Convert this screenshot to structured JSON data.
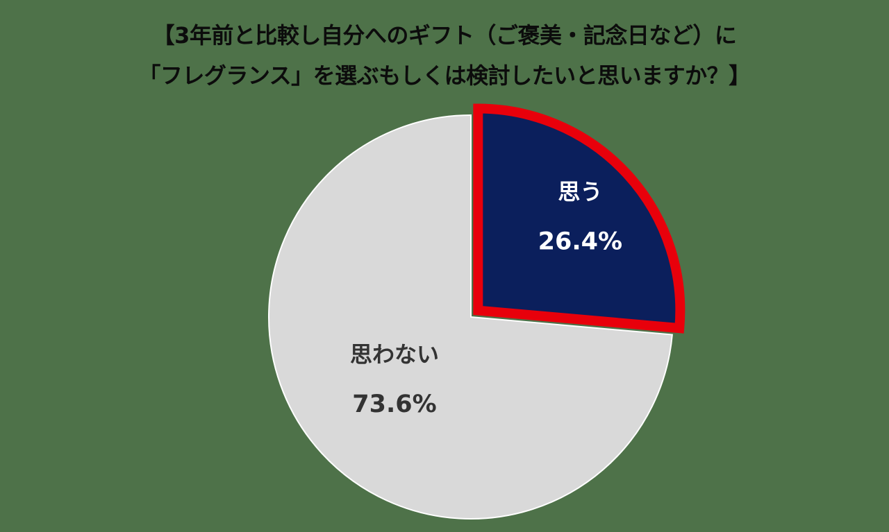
{
  "title": {
    "line1": "【3年前と比較し自分へのギフト（ご褒美・記念日など）に",
    "line2": "「フレグランス」を選ぶもしくは検討したいと思いますか？】"
  },
  "chart_data": {
    "type": "pie",
    "title": "【3年前と比較し自分へのギフト（ご褒美・記念日など）に「フレグランス」を選ぶもしくは検討したいと思いますか？】",
    "slices": [
      {
        "label": "思う",
        "value": 26.4,
        "value_label": "26.4%",
        "color": "#0b1f5c",
        "highlight_border": "#e8000b",
        "exploded": true,
        "label_color": "#ffffff"
      },
      {
        "label": "思わない",
        "value": 73.6,
        "value_label": "73.6%",
        "color": "#d9d9d9",
        "highlight_border": null,
        "exploded": false,
        "label_color": "#333333"
      }
    ],
    "start_angle": "12 o'clock",
    "direction": "clockwise",
    "legend": "none"
  },
  "colors": {
    "background": "#4e7249"
  }
}
